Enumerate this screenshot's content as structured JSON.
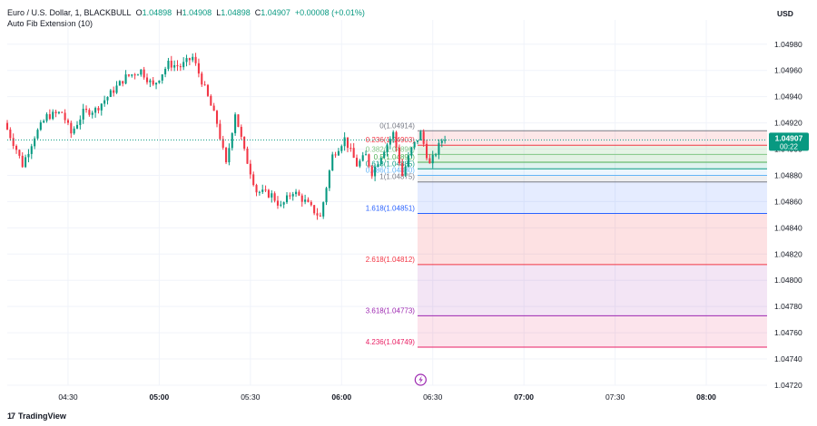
{
  "header": {
    "symbol": "Euro / U.S. Dollar, 1, BLACKBULL",
    "o_label": "O",
    "o_value": "1.04898",
    "h_label": "H",
    "h_value": "1.04908",
    "l_label": "L",
    "l_value": "1.04898",
    "c_label": "C",
    "c_value": "1.04907",
    "change": "+0.00008 (+0.01%)",
    "indicator": "Auto Fib Extension (10)"
  },
  "currency": "USD",
  "brand": {
    "logo": "17",
    "name": "TradingView"
  },
  "price_label": {
    "price": "1.04907",
    "countdown": "00:22",
    "color": "#089981"
  },
  "colors": {
    "up": "#089981",
    "down": "#f23645",
    "grid": "#f0f3fa",
    "axis_text": "#131722"
  },
  "chart_data": {
    "type": "candlestick",
    "ylim": [
      1.0472,
      1.04993
    ],
    "y_ticks": [
      "1.04980",
      "1.04960",
      "1.04940",
      "1.04920",
      "1.04900",
      "1.04880",
      "1.04860",
      "1.04840",
      "1.04820",
      "1.04800",
      "1.04780",
      "1.04760",
      "1.04740",
      "1.04720"
    ],
    "x_range_minutes": [
      250,
      500
    ],
    "x_ticks": [
      {
        "label": "04:30",
        "t": 270,
        "bold": false
      },
      {
        "label": "05:00",
        "t": 300,
        "bold": true
      },
      {
        "label": "05:30",
        "t": 330,
        "bold": false
      },
      {
        "label": "06:00",
        "t": 360,
        "bold": true
      },
      {
        "label": "06:30",
        "t": 390,
        "bold": false
      },
      {
        "label": "07:00",
        "t": 420,
        "bold": true
      },
      {
        "label": "07:30",
        "t": 450,
        "bold": false
      },
      {
        "label": "08:00",
        "t": 480,
        "bold": true
      }
    ],
    "last_price": 1.04907,
    "fib_levels": [
      {
        "label": "0(1.04914)",
        "price": 1.04914,
        "color": "#787b86",
        "fill": null
      },
      {
        "label": "0.236(1.04903)",
        "price": 1.04903,
        "color": "#f23645",
        "fill": "rgba(242,54,69,0.12)"
      },
      {
        "label": "0.382(1.04896)",
        "price": 1.04896,
        "color": "#81c784",
        "fill": "rgba(129,199,132,0.20)"
      },
      {
        "label": "0.5(1.04890)",
        "price": 1.0489,
        "color": "#4caf50",
        "fill": "rgba(76,175,80,0.16)"
      },
      {
        "label": "0.618(1.04885)",
        "price": 1.04885,
        "color": "#089981",
        "fill": "rgba(8,153,129,0.13)"
      },
      {
        "label": "0.786(1.04880)",
        "price": 1.0488,
        "color": "#64b5f6",
        "fill": "rgba(100,181,246,0.12)"
      },
      {
        "label": "1(1.04875)",
        "price": 1.04875,
        "color": "#787b86",
        "fill": "rgba(120,123,134,0.12)"
      },
      {
        "label": "1.618(1.04851)",
        "price": 1.04851,
        "color": "#2962ff",
        "fill": "rgba(41,98,255,0.12)"
      },
      {
        "label": "2.618(1.04812)",
        "price": 1.04812,
        "color": "#f23645",
        "fill": "rgba(242,54,69,0.15)"
      },
      {
        "label": "3.618(1.04773)",
        "price": 1.04773,
        "color": "#9c27b0",
        "fill": "rgba(156,39,176,0.12)"
      },
      {
        "label": "4.236(1.04749)",
        "price": 1.04749,
        "color": "#e91e63",
        "fill": "rgba(233,30,99,0.12)"
      }
    ],
    "fib_time_range": [
      385,
      500
    ],
    "candle_anchors": [
      [
        0,
        1.0492
      ],
      [
        4,
        1.049
      ],
      [
        6,
        1.04888
      ],
      [
        10,
        1.0491
      ],
      [
        14,
        1.04925
      ],
      [
        19,
        1.04928
      ],
      [
        22,
        1.04912
      ],
      [
        26,
        1.04928
      ],
      [
        30,
        1.0493
      ],
      [
        36,
        1.04945
      ],
      [
        40,
        1.04955
      ],
      [
        45,
        1.0496
      ],
      [
        49,
        1.04948
      ],
      [
        54,
        1.04965
      ],
      [
        58,
        1.04963
      ],
      [
        62,
        1.0497
      ],
      [
        66,
        1.04946
      ],
      [
        70,
        1.0492
      ],
      [
        73,
        1.04888
      ],
      [
        76,
        1.04928
      ],
      [
        79,
        1.04898
      ],
      [
        83,
        1.04868
      ],
      [
        88,
        1.04865
      ],
      [
        91,
        1.04856
      ],
      [
        95,
        1.04868
      ],
      [
        99,
        1.0486
      ],
      [
        101,
        1.04855
      ],
      [
        104,
        1.04848
      ],
      [
        108,
        1.04895
      ],
      [
        112,
        1.04908
      ],
      [
        116,
        1.04888
      ],
      [
        119,
        1.04895
      ],
      [
        121,
        1.04882
      ],
      [
        125,
        1.049
      ],
      [
        128,
        1.04912
      ],
      [
        131,
        1.0488
      ],
      [
        134,
        1.049
      ],
      [
        137,
        1.04912
      ],
      [
        140,
        1.04888
      ],
      [
        144,
        1.04907
      ]
    ]
  }
}
